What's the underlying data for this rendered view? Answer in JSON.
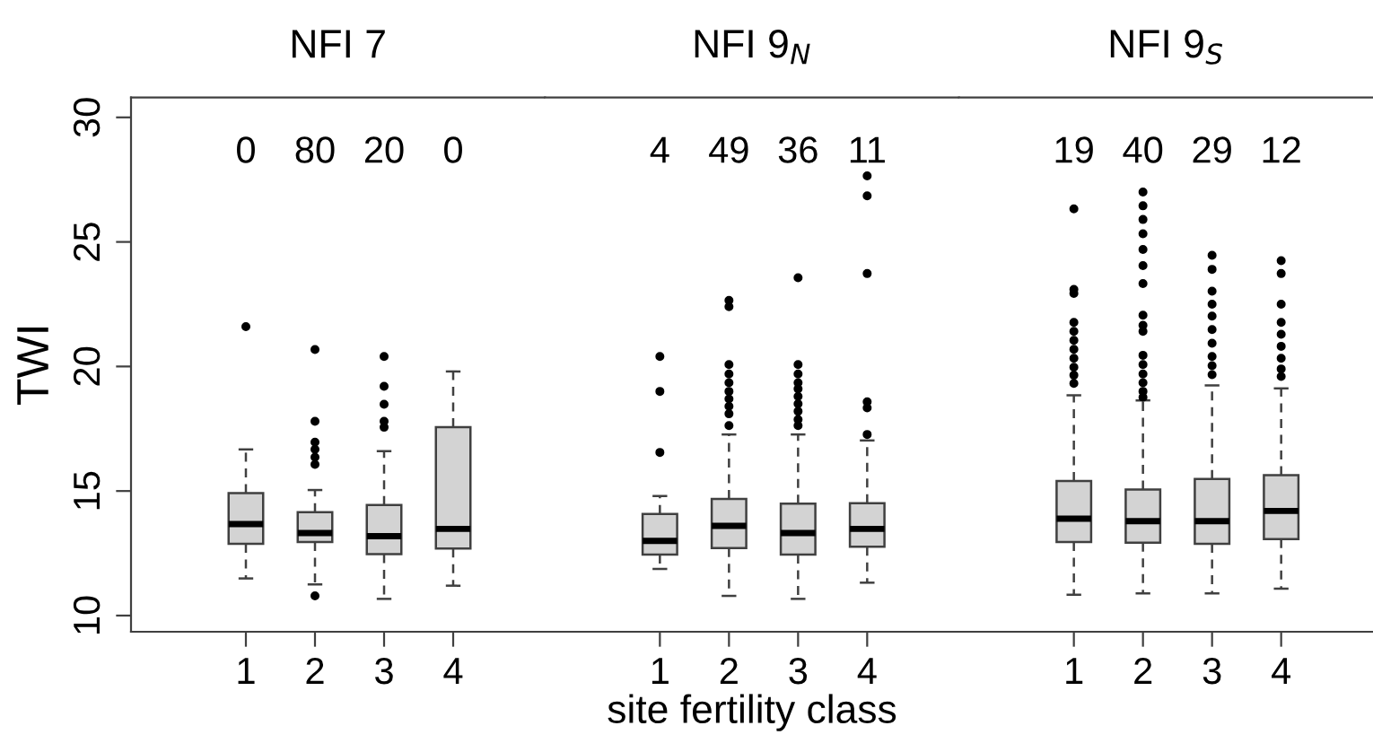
{
  "chart_data": [
    {
      "type": "box",
      "title": "NFI 7",
      "ylabel": "TWI",
      "categories": [
        "1",
        "2",
        "3",
        "4"
      ],
      "ylim": [
        9.35,
        30.8
      ],
      "yticks": [
        10,
        15,
        20,
        25,
        30
      ],
      "boxes": [
        {
          "low": 11.49,
          "q1": 12.88,
          "median": 13.67,
          "q3": 14.92,
          "high": 16.67,
          "outliers": [
            21.6
          ]
        },
        {
          "low": 11.25,
          "q1": 12.95,
          "median": 13.31,
          "q3": 14.15,
          "high": 15.04,
          "outliers": [
            20.68,
            17.8,
            16.96,
            16.67,
            16.36,
            16.07,
            10.79
          ]
        },
        {
          "low": 10.67,
          "q1": 12.47,
          "median": 13.19,
          "q3": 14.44,
          "high": 16.6,
          "outliers": [
            20.4,
            19.2,
            18.48,
            17.8,
            17.56
          ]
        },
        {
          "low": 11.2,
          "q1": 12.69,
          "median": 13.48,
          "q3": 17.56,
          "high": 19.8
        }
      ],
      "annotations": [
        "0",
        "80",
        "20",
        "0"
      ]
    },
    {
      "type": "box",
      "title": "NFI 9$_{N}$",
      "xlabel": "site fertility class",
      "categories": [
        "1",
        "2",
        "3",
        "4"
      ],
      "ylim": [
        9.35,
        30.8
      ],
      "yticks": [
        10,
        15,
        20,
        25,
        30
      ],
      "tick_labels": "x",
      "boxes": [
        {
          "low": 11.87,
          "q1": 12.45,
          "median": 13.0,
          "q3": 14.08,
          "high": 14.8,
          "outliers": [
            20.4,
            19.0,
            16.55
          ]
        },
        {
          "low": 10.79,
          "q1": 12.71,
          "median": 13.6,
          "q3": 14.68,
          "high": 17.27,
          "outliers": [
            22.65,
            22.4,
            20.08,
            19.7,
            19.35,
            19.0,
            18.7,
            18.4,
            18.1,
            17.63
          ]
        },
        {
          "low": 10.67,
          "q1": 12.45,
          "median": 13.31,
          "q3": 14.49,
          "high": 17.27,
          "outliers": [
            23.56,
            20.08,
            19.7,
            19.35,
            19.1,
            18.8,
            18.5,
            18.2,
            17.87,
            17.63
          ]
        },
        {
          "low": 11.32,
          "q1": 12.76,
          "median": 13.48,
          "q3": 14.51,
          "high": 17.03,
          "outliers": [
            27.65,
            26.85,
            23.73,
            18.58,
            18.34,
            17.27
          ]
        }
      ],
      "annotations": [
        "4",
        "49",
        "36",
        "11"
      ]
    },
    {
      "type": "box",
      "title": "NFI 9$_{S}$",
      "categories": [
        "1",
        "2",
        "3",
        "4"
      ],
      "ylim": [
        9.35,
        30.8
      ],
      "yticks": [
        10,
        15,
        20,
        25,
        30
      ],
      "tick_labels": "x",
      "boxes": [
        {
          "low": 10.84,
          "q1": 12.95,
          "median": 13.89,
          "q3": 15.4,
          "high": 18.84,
          "outliers": [
            26.33,
            23.09,
            22.93,
            21.77,
            21.41,
            21.05,
            20.69,
            20.33,
            19.97,
            19.65,
            19.32
          ]
        },
        {
          "low": 10.89,
          "q1": 12.93,
          "median": 13.79,
          "q3": 15.06,
          "high": 18.64,
          "outliers": [
            27.0,
            26.45,
            25.9,
            25.33,
            24.7,
            24.05,
            23.33,
            22.06,
            21.65,
            21.41,
            20.45,
            20.08,
            19.7,
            19.35,
            19.0,
            18.76
          ]
        },
        {
          "low": 10.89,
          "q1": 12.88,
          "median": 13.79,
          "q3": 15.48,
          "high": 19.24,
          "outliers": [
            24.46,
            23.9,
            23.02,
            22.5,
            22.02,
            21.48,
            20.93,
            20.4,
            20.03,
            19.67
          ]
        },
        {
          "low": 11.08,
          "q1": 13.07,
          "median": 14.2,
          "q3": 15.64,
          "high": 19.12,
          "outliers": [
            24.25,
            23.73,
            22.5,
            21.77,
            21.29,
            20.81,
            20.33,
            19.9,
            19.6
          ]
        }
      ],
      "annotations": [
        "19",
        "40",
        "29",
        "12"
      ]
    }
  ]
}
